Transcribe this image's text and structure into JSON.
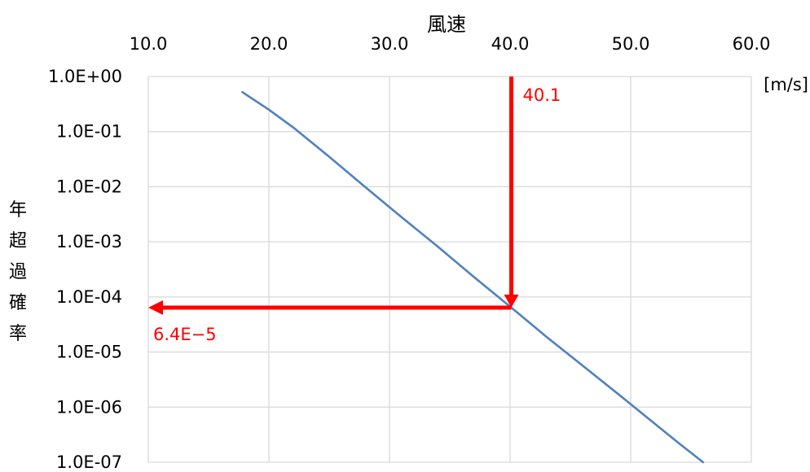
{
  "chart_data": {
    "type": "line",
    "title": "",
    "xlabel": "風速",
    "xunit": "[m/s]",
    "ylabel": "年超過確率",
    "xlim": [
      10.0,
      60.0
    ],
    "y_scale": "log",
    "ylim": [
      1e-07,
      1
    ],
    "x_ticks": [
      "10.0",
      "20.0",
      "30.0",
      "40.0",
      "50.0",
      "60.0"
    ],
    "y_ticks": [
      "1.0E+00",
      "1.0E-01",
      "1.0E-02",
      "1.0E-03",
      "1.0E-04",
      "1.0E-05",
      "1.0E-06",
      "1.0E-07"
    ],
    "grid": true,
    "series": [
      {
        "color": "#4f81bd",
        "x": [
          17.8,
          20.0,
          22.0,
          25.0,
          28.0,
          31.0,
          34.0,
          37.0,
          40.1,
          43.0,
          46.0,
          49.0,
          52.0,
          54.0,
          56.0
        ],
        "y": [
          0.52,
          0.25,
          0.12,
          0.035,
          0.0098,
          0.0028,
          0.00082,
          0.00023,
          6.4e-05,
          1.9e-05,
          5.7e-06,
          1.7e-06,
          5e-07,
          2.2e-07,
          1e-07
        ]
      }
    ],
    "annotations": {
      "color": "#ff0000",
      "x_value": 40.1,
      "x_text": "40.1",
      "y_value": 6.4e-05,
      "y_text": "6.4E−5"
    }
  }
}
